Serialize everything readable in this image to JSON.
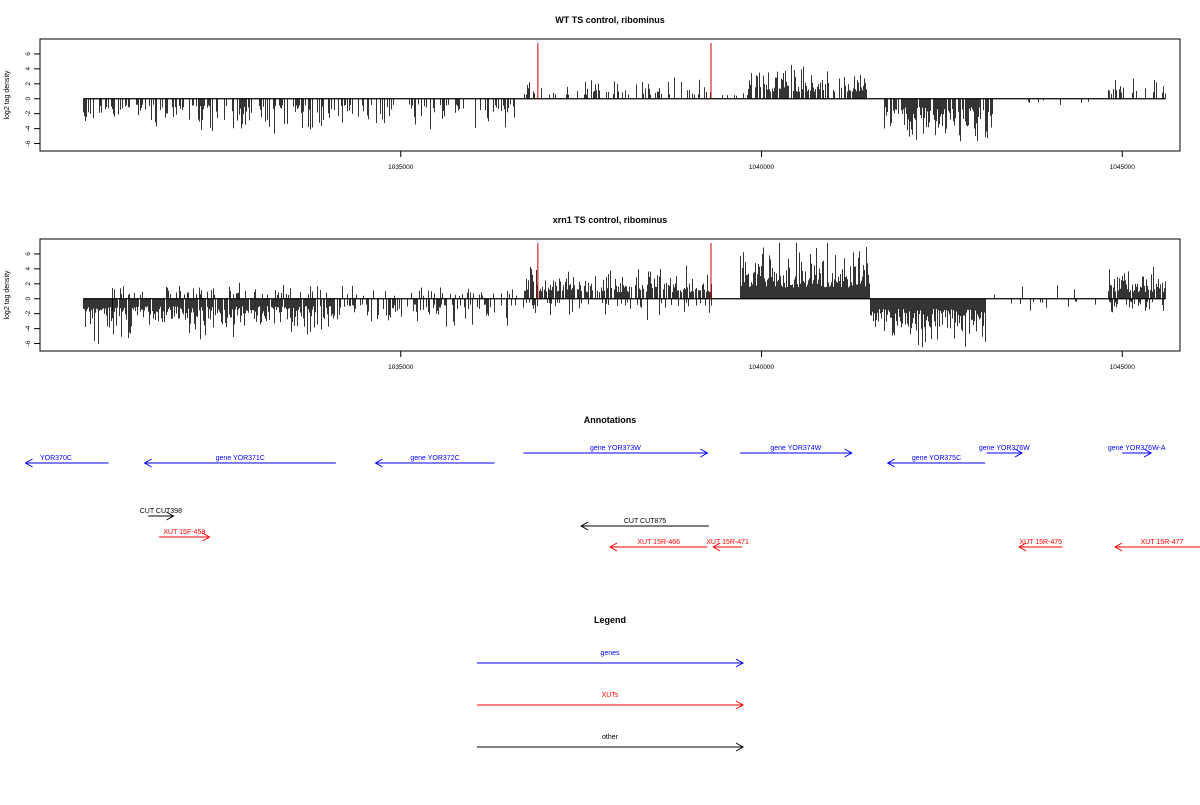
{
  "colors": {
    "gene": "#0000ff",
    "xut": "#ff0000",
    "other": "#000000",
    "marker": "#cc0000",
    "signal": "#000000"
  },
  "chart_data": [
    {
      "type": "bar",
      "title": "WT TS control, ribominus",
      "ylabel": "log2 tag density",
      "ylim": [
        -7,
        8
      ],
      "yticks": [
        -6,
        -4,
        -2,
        0,
        2,
        4,
        6
      ],
      "xlim": [
        1030000,
        1045800
      ],
      "xticks": [
        1035000,
        1040000,
        1045000
      ],
      "xticklabels": [
        "1035000",
        "1040000",
        "1045000"
      ],
      "markers": [
        1036900,
        1039300
      ],
      "signal_regions": [
        {
          "start": 1030600,
          "end": 1031900,
          "sign": -1,
          "amp": 3.2,
          "density": 0.55
        },
        {
          "start": 1031900,
          "end": 1034200,
          "sign": -1,
          "amp": 3.5,
          "density": 0.5
        },
        {
          "start": 1034200,
          "end": 1036600,
          "sign": -1,
          "amp": 3.0,
          "density": 0.35
        },
        {
          "start": 1036700,
          "end": 1039300,
          "sign": 1,
          "amp": 2.2,
          "density": 0.35
        },
        {
          "start": 1039300,
          "end": 1039800,
          "sign": 1,
          "amp": 1.0,
          "density": 0.2
        },
        {
          "start": 1039800,
          "end": 1041450,
          "sign": 1,
          "amp": 3.8,
          "density": 0.8
        },
        {
          "start": 1041700,
          "end": 1043200,
          "sign": -1,
          "amp": 4.5,
          "density": 0.85
        },
        {
          "start": 1043200,
          "end": 1044800,
          "sign": -1,
          "amp": 0.8,
          "density": 0.05
        },
        {
          "start": 1044800,
          "end": 1045600,
          "sign": 1,
          "amp": 2.5,
          "density": 0.3
        }
      ]
    },
    {
      "type": "bar",
      "title": "xrn1 TS control, ribominus",
      "ylabel": "log2 tag density",
      "ylim": [
        -7,
        8
      ],
      "yticks": [
        -6,
        -4,
        -2,
        0,
        2,
        4,
        6
      ],
      "xlim": [
        1030000,
        1045800
      ],
      "xticks": [
        1035000,
        1040000,
        1045000
      ],
      "xticklabels": [
        "1035000",
        "1040000",
        "1045000"
      ],
      "markers": [
        1036900,
        1039300
      ],
      "signal_regions": [
        {
          "start": 1030600,
          "end": 1031000,
          "sign": -1,
          "amp": 4.5,
          "density": 1.0
        },
        {
          "start": 1031000,
          "end": 1034100,
          "sign": -1,
          "amp": 4.0,
          "density": 0.9
        },
        {
          "start": 1031000,
          "end": 1034100,
          "sign": 1,
          "amp": 2.0,
          "density": 0.25
        },
        {
          "start": 1034100,
          "end": 1036600,
          "sign": -1,
          "amp": 3.0,
          "density": 0.4
        },
        {
          "start": 1034100,
          "end": 1036600,
          "sign": 1,
          "amp": 1.5,
          "density": 0.2
        },
        {
          "start": 1036700,
          "end": 1039300,
          "sign": 1,
          "amp": 3.5,
          "density": 0.75
        },
        {
          "start": 1036700,
          "end": 1039300,
          "sign": -1,
          "amp": 2.0,
          "density": 0.3
        },
        {
          "start": 1039700,
          "end": 1041500,
          "sign": 1,
          "amp": 6.0,
          "density": 1.0
        },
        {
          "start": 1041500,
          "end": 1043100,
          "sign": -1,
          "amp": 5.5,
          "density": 1.0
        },
        {
          "start": 1043100,
          "end": 1044800,
          "sign": -1,
          "amp": 1.2,
          "density": 0.12
        },
        {
          "start": 1043100,
          "end": 1044800,
          "sign": 1,
          "amp": 1.5,
          "density": 0.1
        },
        {
          "start": 1044800,
          "end": 1045600,
          "sign": 1,
          "amp": 3.5,
          "density": 0.85
        },
        {
          "start": 1044800,
          "end": 1045600,
          "sign": -1,
          "amp": 1.5,
          "density": 0.3
        }
      ]
    }
  ],
  "annotations": {
    "title": "Annotations",
    "features": [
      {
        "label": "YOR370C",
        "type": "gene",
        "strand": "-",
        "start": 1029800,
        "end": 1030950
      },
      {
        "label": "gene YOR371C",
        "type": "gene",
        "strand": "-",
        "start": 1031450,
        "end": 1034100
      },
      {
        "label": "gene YOR372C",
        "type": "gene",
        "strand": "-",
        "start": 1034650,
        "end": 1036300
      },
      {
        "label": "gene YOR373W",
        "type": "gene",
        "strand": "+",
        "start": 1036700,
        "end": 1039250
      },
      {
        "label": "gene YOR374W",
        "type": "gene",
        "strand": "+",
        "start": 1039700,
        "end": 1041250
      },
      {
        "label": "gene YOR375C",
        "type": "gene",
        "strand": "-",
        "start": 1041750,
        "end": 1043100
      },
      {
        "label": "gene YOR376W",
        "type": "gene",
        "strand": "+",
        "start": 1043120,
        "end": 1043610
      },
      {
        "label": "gene YOR376W-A",
        "type": "gene",
        "strand": "+",
        "start": 1045000,
        "end": 1045400
      },
      {
        "label": "CUT CUT398",
        "type": "other",
        "strand": "+",
        "start": 1031500,
        "end": 1031850
      },
      {
        "label": "XUT 15F-458",
        "type": "xut",
        "strand": "+",
        "start": 1031650,
        "end": 1032350
      },
      {
        "label": "CUT CUT875",
        "type": "other",
        "strand": "-",
        "start": 1037500,
        "end": 1039270
      },
      {
        "label": "XUT 15R-466",
        "type": "xut",
        "strand": "-",
        "start": 1037900,
        "end": 1039250
      },
      {
        "label": "XUT 15R-471",
        "type": "xut",
        "strand": "-",
        "start": 1039330,
        "end": 1039730
      },
      {
        "label": "XUT 15R-475",
        "type": "xut",
        "strand": "-",
        "start": 1043570,
        "end": 1044170
      },
      {
        "label": "XUT 15R-477",
        "type": "xut",
        "strand": "-",
        "start": 1044900,
        "end": 1046200
      }
    ]
  },
  "legend": {
    "title": "Legend",
    "items": [
      {
        "label": "genes",
        "type": "gene"
      },
      {
        "label": "XUTs",
        "type": "xut"
      },
      {
        "label": "other",
        "type": "other"
      }
    ]
  }
}
